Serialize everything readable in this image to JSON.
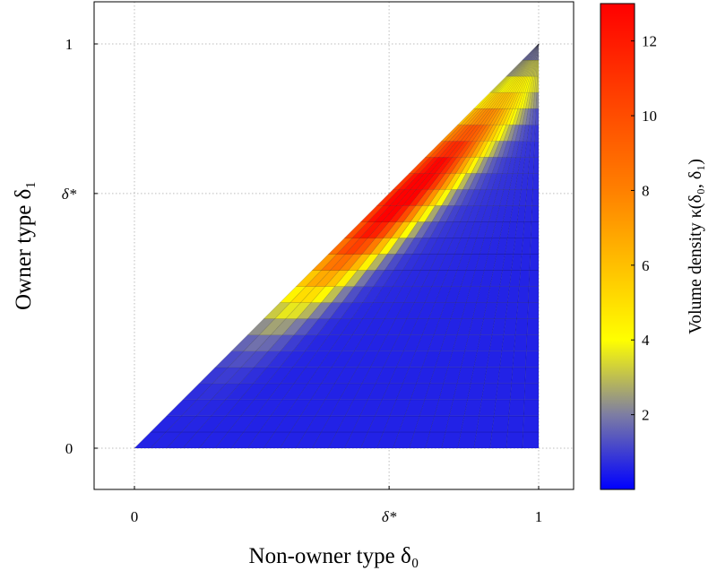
{
  "chart_data": {
    "type": "heatmap",
    "title": "",
    "xlabel": "Non-owner type δ₀",
    "ylabel": "Owner type δ₁",
    "xlim": [
      0,
      1
    ],
    "ylim": [
      0,
      1
    ],
    "x_ticks": [
      {
        "value": 0,
        "label": "0"
      },
      {
        "value": 0.63,
        "label": "δ*"
      },
      {
        "value": 1,
        "label": "1"
      }
    ],
    "y_ticks": [
      {
        "value": 0,
        "label": "0"
      },
      {
        "value": 0.63,
        "label": "δ*"
      },
      {
        "value": 1,
        "label": "1"
      }
    ],
    "grid": true,
    "domain": "triangle 0 ≤ δ₁ ≤ δ₀ ≤ 1",
    "grid_cells": 25,
    "density_model": {
      "description": "ridge of high density just below the diagonal, peaking near δ* (δ₀≈0.68, δ₁≈0.63)",
      "base": 0.55,
      "peak_value": 12.8,
      "peak_location": {
        "x": 0.68,
        "y": 0.63
      }
    },
    "colorbar": {
      "label": "Volume density κ(δ₀, δ₁)",
      "min": 0,
      "max": 13,
      "ticks": [
        2,
        4,
        6,
        8,
        10,
        12
      ],
      "colormap": [
        {
          "value": 0,
          "color": "#0000ff"
        },
        {
          "value": 2,
          "color": "#7d7da3"
        },
        {
          "value": 4,
          "color": "#ffff00"
        },
        {
          "value": 8,
          "color": "#ff8000"
        },
        {
          "value": 13,
          "color": "#ff0000"
        }
      ]
    }
  }
}
